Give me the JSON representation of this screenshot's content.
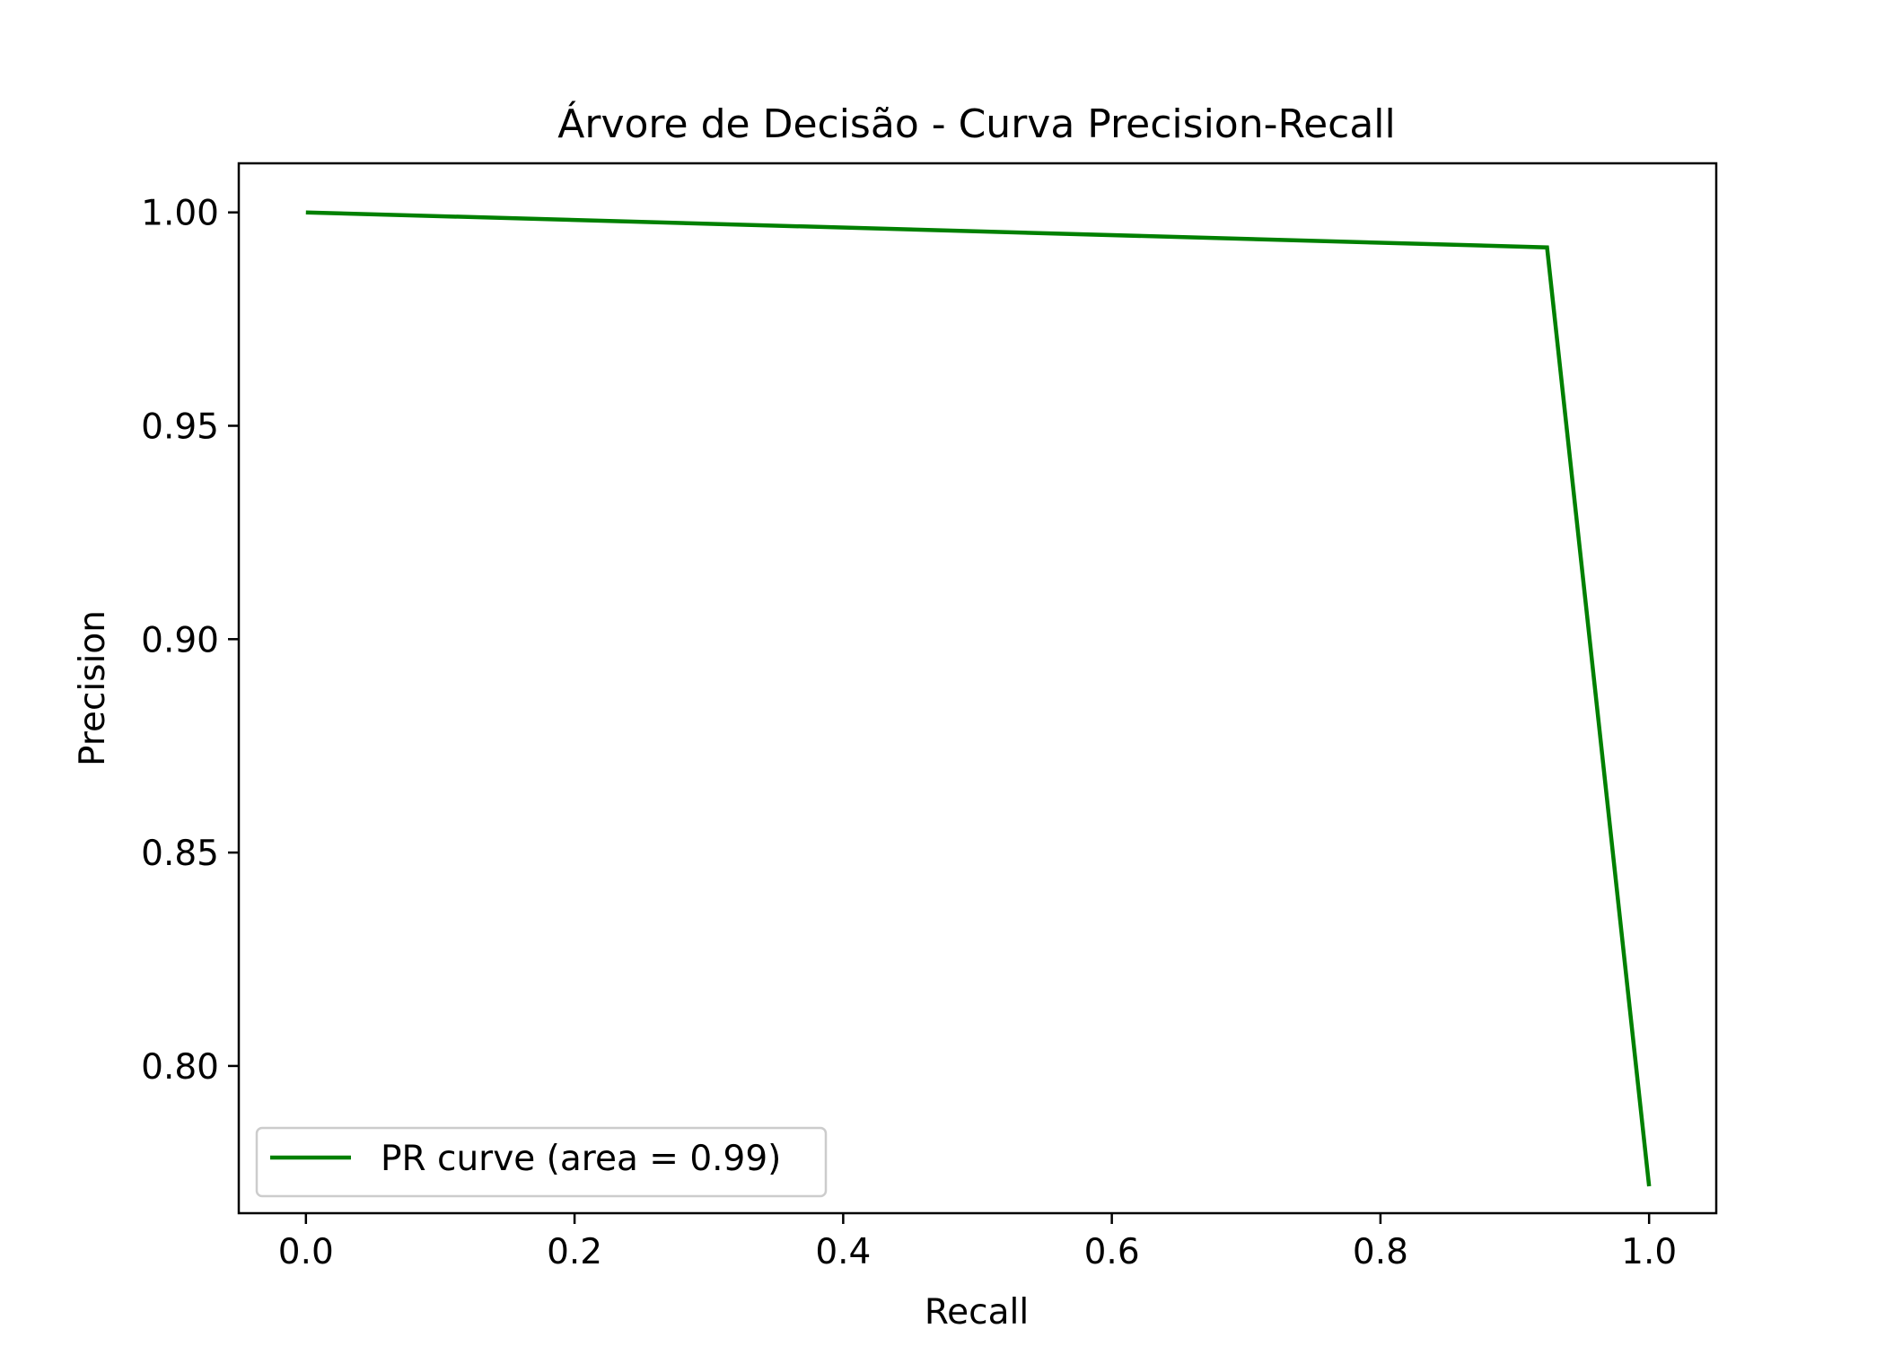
{
  "chart_data": {
    "type": "line",
    "title": "Árvore de Decisão - Curva Precision-Recall",
    "xlabel": "Recall",
    "ylabel": "Precision",
    "xlim": [
      -0.05,
      1.05
    ],
    "ylim": [
      0.7655,
      1.0115
    ],
    "x_ticks": [
      0.0,
      0.2,
      0.4,
      0.6,
      0.8,
      1.0
    ],
    "x_tick_labels": [
      "0.0",
      "0.2",
      "0.4",
      "0.6",
      "0.8",
      "1.0"
    ],
    "y_ticks": [
      0.8,
      0.85,
      0.9,
      0.95,
      1.0
    ],
    "y_tick_labels": [
      "0.80",
      "0.85",
      "0.90",
      "0.95",
      "1.00"
    ],
    "grid": false,
    "legend": {
      "placement": "lower-left",
      "entries": [
        "PR curve (area = 0.99)"
      ]
    },
    "series": [
      {
        "name": "PR curve (area = 0.99)",
        "color": "#008000",
        "x": [
          0.0,
          0.924,
          1.0
        ],
        "y": [
          1.0,
          0.9918,
          0.7718
        ]
      }
    ]
  }
}
